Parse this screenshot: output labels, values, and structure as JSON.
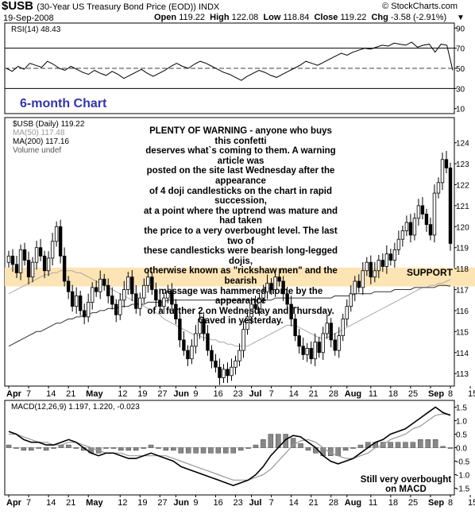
{
  "header": {
    "symbol": "$USB",
    "description": "(30-Year US Treasury Bond Price (EOD)) INDX",
    "date": "19-Sep-2008",
    "open_label": "Open",
    "open": "119.22",
    "high_label": "High",
    "high": "122.08",
    "low_label": "Low",
    "low": "118.84",
    "close_label": "Close",
    "close": "119.22",
    "chg_label": "Chg",
    "chg": "-3.58 (-2.91%)",
    "watermark": "© StockCharts.com"
  },
  "chart_data": [
    {
      "type": "line",
      "panel": "rsi",
      "label": "RSI(14) 48.43",
      "ylim": [
        5,
        95
      ],
      "y_ticks": [
        10,
        30,
        50,
        70,
        90
      ],
      "reference_lines": [
        30,
        50,
        70
      ],
      "series": [
        {
          "name": "RSI(14)",
          "values": [
            50,
            47,
            52,
            49,
            55,
            53,
            51,
            57,
            54,
            50,
            48,
            52,
            49,
            46,
            44,
            48,
            45,
            43,
            47,
            44,
            40,
            43,
            46,
            49,
            45,
            42,
            45,
            48,
            52,
            55,
            52,
            50,
            54,
            57,
            55,
            52,
            49,
            46,
            44,
            41,
            38,
            42,
            45,
            48,
            46,
            43,
            41,
            44,
            47,
            50,
            53,
            57,
            55,
            53,
            56,
            59,
            62,
            65,
            63,
            66,
            68,
            70,
            69,
            71,
            73,
            72,
            75,
            74,
            73,
            76,
            71,
            73,
            74,
            66,
            74,
            73,
            48
          ]
        }
      ]
    },
    {
      "type": "candlestick",
      "panel": "price",
      "title": "6-month Chart",
      "legend": [
        {
          "name": "$USB (Daily) 119.22",
          "color": "#000000"
        },
        {
          "name": "MA(50) 117.48",
          "color": "#aaaaaa"
        },
        {
          "name": "MA(200) 117.16",
          "color": "#333333"
        },
        {
          "name": "Volume undef",
          "color": "#aaaaaa"
        }
      ],
      "ylim": [
        112.4,
        125.2
      ],
      "y_ticks": [
        113,
        114,
        115,
        116,
        117,
        118,
        119,
        120,
        121,
        122,
        123,
        124
      ],
      "support_zone": {
        "label": "SUPPORT",
        "from": 117.15,
        "to": 118.05
      },
      "closes": [
        118.6,
        118.2,
        117.8,
        118.9,
        118.4,
        117.6,
        118.3,
        119.0,
        118.6,
        117.9,
        118.5,
        119.3,
        120.0,
        118.6,
        117.4,
        116.9,
        116.2,
        116.7,
        116.0,
        115.7,
        116.4,
        117.1,
        116.9,
        117.5,
        117.2,
        116.7,
        116.3,
        115.8,
        116.5,
        117.0,
        117.6,
        116.8,
        116.1,
        116.6,
        117.2,
        117.6,
        117.0,
        116.5,
        116.2,
        116.6,
        116.9,
        116.3,
        115.6,
        114.6,
        114.1,
        113.7,
        114.3,
        114.9,
        115.6,
        114.9,
        114.1,
        113.6,
        113.3,
        112.8,
        113.2,
        112.9,
        113.3,
        113.6,
        114.1,
        115.1,
        115.7,
        116.3,
        116.1,
        116.6,
        116.9,
        117.3,
        117.0,
        117.6,
        117.4,
        116.8,
        116.3,
        115.6,
        114.8,
        114.3,
        113.9,
        114.2,
        113.7,
        114.5,
        114.0,
        114.9,
        115.4,
        114.6,
        114.1,
        114.8,
        115.6,
        116.2,
        116.8,
        117.4,
        117.1,
        117.9,
        118.3,
        117.6,
        117.9,
        118.4,
        118.1,
        118.7,
        118.4,
        118.9,
        119.4,
        119.8,
        120.2,
        119.6,
        120.4,
        121.0,
        120.6,
        120.1,
        119.6,
        121.6,
        122.1,
        123.2,
        122.8,
        119.2
      ],
      "ma50": [
        116.8,
        116.9,
        117.0,
        117.1,
        117.2,
        117.3,
        117.4,
        117.5,
        117.6,
        117.7,
        117.7,
        117.8,
        117.8,
        117.9,
        117.9,
        117.9,
        117.9,
        117.8,
        117.8,
        117.7,
        117.6,
        117.5,
        117.4,
        117.3,
        117.2,
        117.1,
        117.0,
        116.9,
        116.8,
        116.7,
        116.6,
        116.5,
        116.4,
        116.3,
        116.2,
        116.1,
        116.0,
        115.9,
        115.8,
        115.6,
        115.5,
        115.4,
        115.3,
        115.2,
        115.1,
        115.0,
        114.9,
        114.8,
        114.8,
        114.7,
        114.7,
        114.6,
        114.6,
        114.5,
        114.5,
        114.4,
        114.4,
        114.3,
        114.3,
        114.3,
        114.3,
        114.4,
        114.5,
        114.6,
        114.7,
        114.8,
        114.9,
        115.0,
        115.1,
        115.2,
        115.3,
        115.3,
        115.3,
        115.2,
        115.1,
        115.0,
        114.9,
        114.8,
        114.7,
        114.7,
        114.7,
        114.8,
        114.9,
        115.0,
        115.1,
        115.2,
        115.3,
        115.4,
        115.5,
        115.6,
        115.7,
        115.8,
        115.9,
        116.0,
        116.1,
        116.2,
        116.3,
        116.4,
        116.5,
        116.6,
        116.7,
        116.8,
        116.9,
        117.0,
        117.1,
        117.1,
        117.2,
        117.2,
        117.3,
        117.3,
        117.4,
        117.48
      ],
      "ma200": [
        114.3,
        114.4,
        114.5,
        114.6,
        114.7,
        114.8,
        114.9,
        115.0,
        115.0,
        115.1,
        115.2,
        115.3,
        115.4,
        115.4,
        115.5,
        115.6,
        115.6,
        115.7,
        115.7,
        115.8,
        115.8,
        115.9,
        115.9,
        116.0,
        116.0,
        116.1,
        116.1,
        116.1,
        116.2,
        116.2,
        116.2,
        116.3,
        116.3,
        116.3,
        116.3,
        116.4,
        116.4,
        116.4,
        116.4,
        116.4,
        116.5,
        116.5,
        116.5,
        116.5,
        116.5,
        116.5,
        116.5,
        116.5,
        116.5,
        116.5,
        116.5,
        116.5,
        116.5,
        116.5,
        116.5,
        116.5,
        116.5,
        116.5,
        116.5,
        116.5,
        116.5,
        116.5,
        116.5,
        116.5,
        116.5,
        116.5,
        116.5,
        116.6,
        116.6,
        116.6,
        116.6,
        116.6,
        116.6,
        116.6,
        116.6,
        116.6,
        116.6,
        116.6,
        116.6,
        116.6,
        116.6,
        116.6,
        116.7,
        116.7,
        116.7,
        116.7,
        116.7,
        116.8,
        116.8,
        116.8,
        116.8,
        116.8,
        116.9,
        116.9,
        116.9,
        116.9,
        116.9,
        117.0,
        117.0,
        117.0,
        117.0,
        117.0,
        117.1,
        117.1,
        117.1,
        117.1,
        117.1,
        117.1,
        117.2,
        117.2,
        117.2,
        117.16
      ]
    },
    {
      "type": "line",
      "panel": "macd",
      "label": "MACD(12,26,9) 1.197, 1.220, -0.023",
      "ylim": [
        -1.75,
        1.75
      ],
      "y_ticks": [
        -1.5,
        -1.0,
        -0.5,
        0.0,
        0.5,
        1.0,
        1.5
      ],
      "series": [
        {
          "name": "MACD",
          "values": [
            0.6,
            0.5,
            0.3,
            0.2,
            0.2,
            0.1,
            0.1,
            0.2,
            0.3,
            0.2,
            0.0,
            -0.2,
            -0.3,
            -0.2,
            -0.2,
            -0.3,
            -0.4,
            -0.4,
            -0.3,
            -0.2,
            -0.3,
            -0.4,
            -0.5,
            -0.7,
            -0.8,
            -0.9,
            -1.0,
            -1.1,
            -1.2,
            -1.3,
            -1.4,
            -1.3,
            -1.2,
            -1.0,
            -0.7,
            -0.3,
            0.0,
            0.3,
            0.45,
            0.4,
            0.2,
            0.0,
            -0.3,
            -0.5,
            -0.6,
            -0.5,
            -0.4,
            -0.2,
            0.0,
            0.2,
            0.3,
            0.5,
            0.6,
            0.7,
            0.9,
            1.1,
            1.3,
            1.5,
            1.3,
            1.2
          ]
        },
        {
          "name": "Signal",
          "values": [
            0.5,
            0.5,
            0.4,
            0.3,
            0.2,
            0.2,
            0.1,
            0.1,
            0.2,
            0.2,
            0.1,
            0.0,
            -0.1,
            -0.2,
            -0.2,
            -0.2,
            -0.3,
            -0.3,
            -0.3,
            -0.3,
            -0.3,
            -0.3,
            -0.4,
            -0.5,
            -0.6,
            -0.7,
            -0.8,
            -0.9,
            -1.0,
            -1.1,
            -1.2,
            -1.2,
            -1.2,
            -1.1,
            -1.0,
            -0.8,
            -0.5,
            -0.2,
            0.1,
            0.25,
            0.3,
            0.2,
            0.0,
            -0.2,
            -0.3,
            -0.4,
            -0.4,
            -0.3,
            -0.2,
            0.0,
            0.1,
            0.3,
            0.4,
            0.5,
            0.7,
            0.8,
            1.0,
            1.2,
            1.25,
            1.22
          ]
        },
        {
          "name": "Histogram",
          "values": [
            0.1,
            0.0,
            -0.1,
            -0.1,
            0.0,
            -0.1,
            0.0,
            0.1,
            0.1,
            0.0,
            -0.1,
            -0.2,
            -0.2,
            0.0,
            0.0,
            -0.1,
            -0.1,
            -0.1,
            0.0,
            0.1,
            0.0,
            -0.1,
            -0.1,
            -0.2,
            -0.2,
            -0.2,
            -0.2,
            -0.2,
            -0.2,
            -0.2,
            -0.2,
            -0.1,
            0.0,
            0.1,
            0.3,
            0.5,
            0.5,
            0.5,
            0.35,
            0.15,
            -0.1,
            -0.2,
            -0.3,
            -0.3,
            -0.3,
            -0.1,
            0.0,
            0.1,
            0.2,
            0.2,
            0.2,
            0.2,
            0.2,
            0.2,
            0.2,
            0.3,
            0.3,
            0.3,
            0.05,
            -0.02
          ]
        }
      ]
    }
  ],
  "annotations": {
    "warning_text": "PLENTY OF WARNING - anyone who buys this confetti\ndeserves what`s coming to them. A warning article was\nposted on the site last Wednesday after the appearance\nof 4 doji candlesticks on the chart in rapid succession,\nat a point where the uptrend was mature and had taken\nthe price to a very overbought level. The last two of\nthese candlesticks were bearish long-legged dojis,\notherwise known as \"rickshaw men\" and the bearish\nmessage was hammered home by the appearance\nof a further 2 on Wednesday and Thursday.\nCaved in yesterday.",
    "macd_note": "Still very overbought\non MACD"
  },
  "x_axis": {
    "labels": [
      "Apr",
      "7",
      "14",
      "21",
      "May",
      "12",
      "19",
      "27",
      "Jun",
      "9",
      "16",
      "23",
      "Jul",
      "7",
      "14",
      "21",
      "28",
      "Aug",
      "11",
      "18",
      "25",
      "Sep",
      "8",
      "15"
    ],
    "positions": [
      0,
      5,
      10,
      15,
      20,
      28,
      33,
      38,
      42,
      47,
      52,
      57,
      61,
      66,
      71,
      76,
      81,
      85,
      91,
      96,
      101,
      106,
      111,
      116
    ]
  },
  "colors": {
    "support": "#fde4b4",
    "title": "#3333aa",
    "ma50": "#aaaaaa",
    "ma200": "#333333"
  }
}
